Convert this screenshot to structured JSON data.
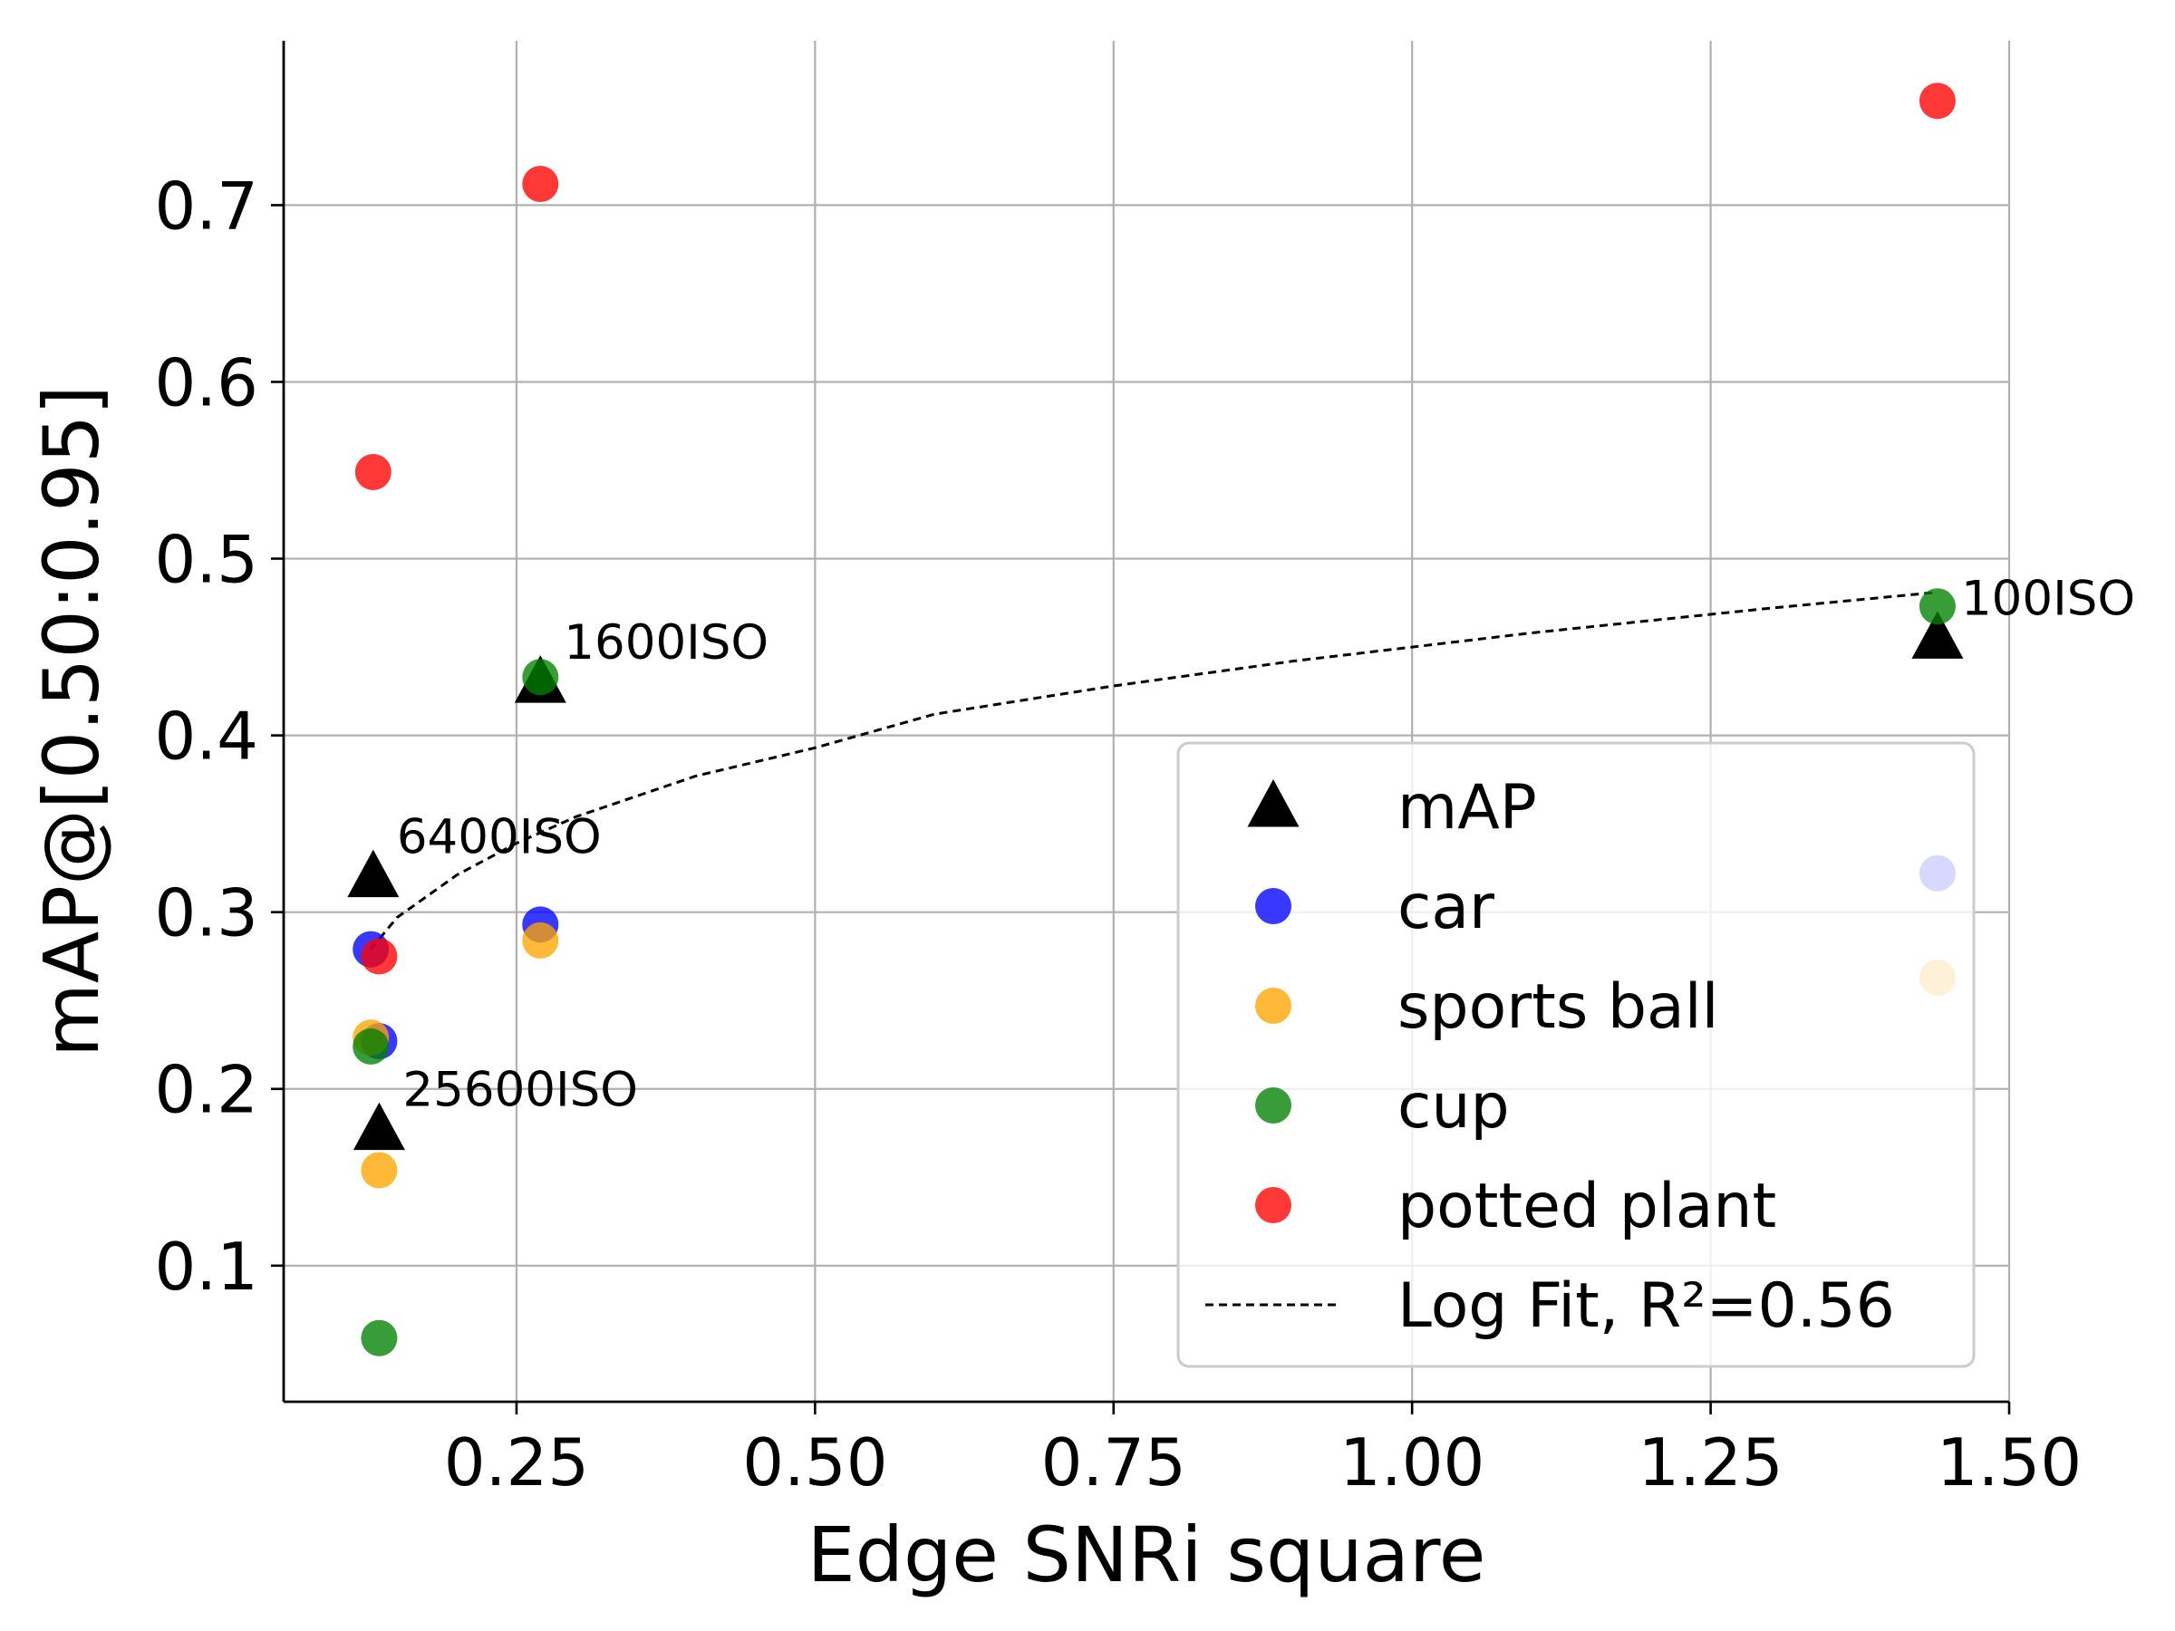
{
  "chart_data": {
    "type": "scatter",
    "xlabel": "Edge SNRi square",
    "ylabel": "mAP@[0.50:0.95]",
    "xlim": [
      0.055,
      1.5
    ],
    "ylim": [
      0.023,
      0.793
    ],
    "x_ticks": [
      {
        "value": 0.25,
        "label": "0.25"
      },
      {
        "value": 0.5,
        "label": "0.50"
      },
      {
        "value": 0.75,
        "label": "0.75"
      },
      {
        "value": 1.0,
        "label": "1.00"
      },
      {
        "value": 1.25,
        "label": "1.25"
      },
      {
        "value": 1.5,
        "label": "1.50"
      }
    ],
    "y_ticks": [
      {
        "value": 0.1,
        "label": "0.1"
      },
      {
        "value": 0.2,
        "label": "0.2"
      },
      {
        "value": 0.3,
        "label": "0.3"
      },
      {
        "value": 0.4,
        "label": "0.4"
      },
      {
        "value": 0.5,
        "label": "0.5"
      },
      {
        "value": 0.6,
        "label": "0.6"
      },
      {
        "value": 0.7,
        "label": "0.7"
      }
    ],
    "grid": true,
    "legend_position": "lower-right",
    "series": [
      {
        "name": "mAP",
        "marker": "triangle",
        "color": "#000000",
        "points": [
          {
            "x": 0.13,
            "y": 0.32
          },
          {
            "x": 0.27,
            "y": 0.43
          },
          {
            "x": 1.44,
            "y": 0.455
          },
          {
            "x": 0.135,
            "y": 0.177
          }
        ]
      },
      {
        "name": "car",
        "marker": "circle",
        "color": "#0000ff",
        "points": [
          {
            "x": 0.128,
            "y": 0.279
          },
          {
            "x": 0.27,
            "y": 0.293
          },
          {
            "x": 1.44,
            "y": 0.322
          },
          {
            "x": 0.135,
            "y": 0.227
          }
        ]
      },
      {
        "name": "sports ball",
        "marker": "circle",
        "color": "#ffa500",
        "points": [
          {
            "x": 0.128,
            "y": 0.229
          },
          {
            "x": 0.27,
            "y": 0.284
          },
          {
            "x": 1.44,
            "y": 0.263
          },
          {
            "x": 0.135,
            "y": 0.154
          }
        ]
      },
      {
        "name": "cup",
        "marker": "circle",
        "color": "#008000",
        "points": [
          {
            "x": 0.128,
            "y": 0.224
          },
          {
            "x": 0.27,
            "y": 0.433
          },
          {
            "x": 1.44,
            "y": 0.473
          },
          {
            "x": 0.135,
            "y": 0.059
          }
        ]
      },
      {
        "name": "potted plant",
        "marker": "circle",
        "color": "#ff0000",
        "points": [
          {
            "x": 0.13,
            "y": 0.549
          },
          {
            "x": 0.27,
            "y": 0.712
          },
          {
            "x": 1.44,
            "y": 0.759
          },
          {
            "x": 0.135,
            "y": 0.275
          }
        ]
      }
    ],
    "fit": {
      "name": "Log Fit, R²=0.56",
      "style": "dashed",
      "color": "#000000",
      "points": [
        {
          "x": 0.128,
          "y": 0.279
        },
        {
          "x": 0.15,
          "y": 0.297
        },
        {
          "x": 0.2,
          "y": 0.321
        },
        {
          "x": 0.25,
          "y": 0.339
        },
        {
          "x": 0.3,
          "y": 0.354
        },
        {
          "x": 0.4,
          "y": 0.377
        },
        {
          "x": 0.5,
          "y": 0.393
        },
        {
          "x": 0.6,
          "y": 0.412
        },
        {
          "x": 0.75,
          "y": 0.428
        },
        {
          "x": 0.9,
          "y": 0.442
        },
        {
          "x": 1.0,
          "y": 0.45
        },
        {
          "x": 1.1,
          "y": 0.458
        },
        {
          "x": 1.2,
          "y": 0.465
        },
        {
          "x": 1.3,
          "y": 0.472
        },
        {
          "x": 1.44,
          "y": 0.481
        }
      ]
    },
    "annotations": [
      {
        "text": "6400ISO",
        "x": 0.13,
        "y": 0.32
      },
      {
        "text": "1600ISO",
        "x": 0.27,
        "y": 0.43
      },
      {
        "text": "100ISO",
        "x": 1.44,
        "y": 0.455
      },
      {
        "text": "25600ISO",
        "x": 0.135,
        "y": 0.177
      }
    ]
  }
}
